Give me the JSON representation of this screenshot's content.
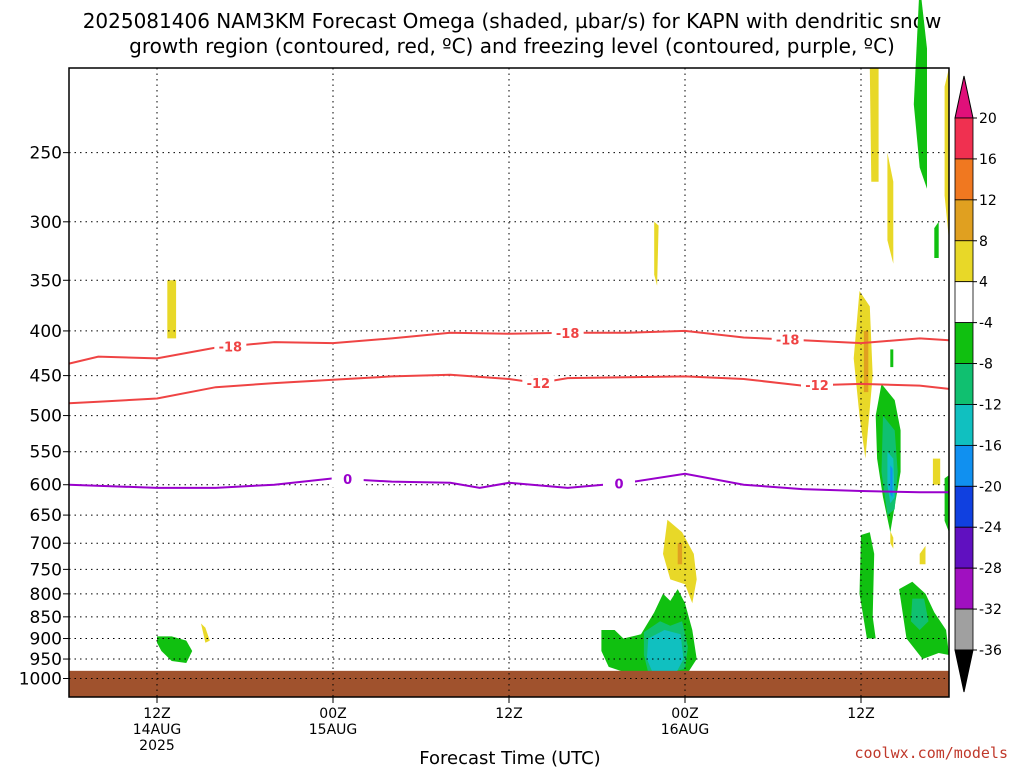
{
  "chart_data": {
    "type": "heatmap",
    "title_line1": "2025081406 NAM3KM Forecast Omega (shaded, µbar/s) for KAPN with dendritic snow",
    "title_line2": "growth region (contoured, red, ºC) and freezing level (contoured, purple, ºC)",
    "xlabel": "Forecast Time (UTC)",
    "credit": "coolwx.com/models",
    "x_ticks": [
      {
        "hour": 12,
        "lines": [
          "12Z",
          "14AUG",
          "2025"
        ]
      },
      {
        "hour": 24,
        "lines": [
          "00Z",
          "15AUG"
        ]
      },
      {
        "hour": 36,
        "lines": [
          "12Z"
        ]
      },
      {
        "hour": 48,
        "lines": [
          "00Z",
          "16AUG"
        ]
      },
      {
        "hour": 60,
        "lines": [
          "12Z"
        ]
      }
    ],
    "x_range_hours": [
      6,
      66
    ],
    "y_ticks": [
      250,
      300,
      350,
      400,
      450,
      500,
      550,
      600,
      650,
      700,
      750,
      800,
      850,
      900,
      950,
      1000
    ],
    "y_axis": "pressure (hPa), log scale, top 200 to bottom 1050",
    "grid": "dotted horizontal at pressure levels, dotted vertical at 12Z/00Z",
    "colorbar": {
      "labels": [
        "20",
        "16",
        "12",
        "8",
        "4",
        "-4",
        "-8",
        "-12",
        "-16",
        "-20",
        "-24",
        "-28",
        "-32",
        "-36"
      ],
      "colors": [
        "#f03050",
        "#f07820",
        "#e0a020",
        "#e8d828",
        "#ffffff",
        "#10c010",
        "#10c070",
        "#10c0c0",
        "#1090f0",
        "#1040e0",
        "#6010c0",
        "#a010c0",
        "#a0a0a0"
      ],
      "top_arrow": "#e0107a",
      "bottom_arrow": "#000000"
    },
    "contour_labels": {
      "dgz_upper": "-18",
      "dgz_lower": "-12",
      "freezing": "0"
    },
    "series": [
      {
        "values_hpa": [
          [
            6,
            436
          ],
          [
            8,
            428
          ],
          [
            12,
            430
          ],
          [
            16,
            418
          ],
          [
            20,
            412
          ],
          [
            24,
            413
          ],
          [
            28,
            408
          ],
          [
            32,
            402
          ],
          [
            36,
            403
          ],
          [
            40,
            402
          ],
          [
            44,
            402
          ],
          [
            48,
            400
          ],
          [
            52,
            407
          ],
          [
            56,
            410
          ],
          [
            60,
            413
          ],
          [
            64,
            408
          ],
          [
            66,
            410
          ]
        ],
        "color": "#ef4444"
      },
      {
        "values_hpa": [
          [
            6,
            484
          ],
          [
            8,
            482
          ],
          [
            12,
            478
          ],
          [
            16,
            464
          ],
          [
            20,
            459
          ],
          [
            24,
            455
          ],
          [
            28,
            451
          ],
          [
            32,
            449
          ],
          [
            36,
            454
          ],
          [
            38,
            459
          ],
          [
            40,
            453
          ],
          [
            44,
            452
          ],
          [
            48,
            451
          ],
          [
            52,
            454
          ],
          [
            56,
            462
          ],
          [
            60,
            460
          ],
          [
            64,
            462
          ],
          [
            66,
            466
          ]
        ],
        "color": "#ef4444"
      },
      {
        "values_hpa": [
          [
            6,
            600
          ],
          [
            12,
            605
          ],
          [
            16,
            605
          ],
          [
            20,
            600
          ],
          [
            24,
            590
          ],
          [
            28,
            595
          ],
          [
            32,
            597
          ],
          [
            34,
            605
          ],
          [
            36,
            597
          ],
          [
            40,
            605
          ],
          [
            44,
            597
          ],
          [
            48,
            583
          ],
          [
            52,
            600
          ],
          [
            56,
            607
          ],
          [
            60,
            610
          ],
          [
            64,
            612
          ],
          [
            66,
            612
          ]
        ],
        "color": "#9900cc"
      }
    ],
    "omega_regions": [
      {
        "color": "#e8d828",
        "points": [
          [
            12.7,
            350
          ],
          [
            13.3,
            350
          ],
          [
            13.3,
            408
          ],
          [
            12.7,
            408
          ]
        ]
      },
      {
        "color": "#e8d828",
        "points": [
          [
            45.9,
            300
          ],
          [
            46.2,
            303
          ],
          [
            46.1,
            355
          ],
          [
            45.9,
            345
          ]
        ]
      },
      {
        "color": "#e8d828",
        "points": [
          [
            46.8,
            658
          ],
          [
            47.8,
            680
          ],
          [
            48.6,
            720
          ],
          [
            48.8,
            770
          ],
          [
            48.5,
            820
          ],
          [
            48.0,
            780
          ],
          [
            47.0,
            770
          ],
          [
            46.5,
            720
          ]
        ]
      },
      {
        "color": "#e8d828",
        "points": [
          [
            60.6,
            200
          ],
          [
            61.2,
            200
          ],
          [
            61.2,
            270
          ],
          [
            60.7,
            270
          ]
        ]
      },
      {
        "color": "#e8d828",
        "points": [
          [
            61.8,
            250
          ],
          [
            62.2,
            270
          ],
          [
            62.2,
            335
          ],
          [
            61.8,
            315
          ]
        ]
      },
      {
        "color": "#e8d828",
        "points": [
          [
            59.9,
            360
          ],
          [
            60.6,
            375
          ],
          [
            60.8,
            450
          ],
          [
            60.3,
            560
          ],
          [
            59.9,
            500
          ],
          [
            59.5,
            430
          ]
        ]
      },
      {
        "color": "#e8d828",
        "points": [
          [
            65.7,
            210
          ],
          [
            66,
            200
          ],
          [
            66,
            315
          ],
          [
            65.7,
            280
          ]
        ]
      },
      {
        "color": "#e8d828",
        "points": [
          [
            64.9,
            560
          ],
          [
            65.4,
            560
          ],
          [
            65.4,
            600
          ],
          [
            64.9,
            600
          ]
        ]
      },
      {
        "color": "#e8d828",
        "points": [
          [
            62.0,
            678
          ],
          [
            62.2,
            690
          ],
          [
            62.2,
            710
          ],
          [
            62.0,
            700
          ]
        ]
      },
      {
        "color": "#e8d828",
        "points": [
          [
            64.0,
            720
          ],
          [
            64.4,
            705
          ],
          [
            64.4,
            740
          ],
          [
            64.0,
            740
          ]
        ]
      },
      {
        "color": "#e8d828",
        "points": [
          [
            60.8,
            1010
          ],
          [
            61.4,
            990
          ],
          [
            61.6,
            1020
          ],
          [
            61.0,
            1030
          ]
        ]
      },
      {
        "color": "#e8d828",
        "points": [
          [
            15.0,
            865
          ],
          [
            15.3,
            875
          ],
          [
            15.6,
            905
          ],
          [
            15.3,
            910
          ]
        ]
      },
      {
        "color": "#e0a020",
        "points": [
          [
            60.2,
            400
          ],
          [
            60.5,
            400
          ],
          [
            60.5,
            470
          ],
          [
            60.2,
            470
          ]
        ]
      },
      {
        "color": "#e0a020",
        "points": [
          [
            47.5,
            700
          ],
          [
            47.8,
            700
          ],
          [
            47.8,
            740
          ],
          [
            47.5,
            740
          ]
        ]
      },
      {
        "color": "#10c010",
        "points": [
          [
            12.0,
            895
          ],
          [
            13.0,
            895
          ],
          [
            14.0,
            905
          ],
          [
            14.4,
            930
          ],
          [
            14.0,
            960
          ],
          [
            13.0,
            955
          ],
          [
            12.3,
            930
          ],
          [
            12.0,
            910
          ]
        ]
      },
      {
        "color": "#10c010",
        "points": [
          [
            42.3,
            880
          ],
          [
            43.2,
            880
          ],
          [
            43.8,
            900
          ],
          [
            45.0,
            890
          ],
          [
            45.9,
            840
          ],
          [
            46.5,
            800
          ],
          [
            47.0,
            815
          ],
          [
            47.5,
            790
          ],
          [
            48.0,
            820
          ],
          [
            48.5,
            880
          ],
          [
            48.8,
            950
          ],
          [
            48.2,
            985
          ],
          [
            47.0,
            990
          ],
          [
            46.0,
            988
          ],
          [
            44.0,
            985
          ],
          [
            42.8,
            970
          ],
          [
            42.3,
            930
          ]
        ]
      },
      {
        "color": "#10c010",
        "points": [
          [
            64.0,
            160
          ],
          [
            64.5,
            190
          ],
          [
            64.5,
            275
          ],
          [
            64.0,
            260
          ],
          [
            63.6,
            220
          ]
        ]
      },
      {
        "color": "#10c010",
        "points": [
          [
            65.0,
            305
          ],
          [
            65.3,
            300
          ],
          [
            65.3,
            330
          ],
          [
            65.0,
            330
          ]
        ]
      },
      {
        "color": "#10c010",
        "points": [
          [
            61.4,
            460
          ],
          [
            62.3,
            480
          ],
          [
            62.7,
            520
          ],
          [
            62.7,
            580
          ],
          [
            62.4,
            620
          ],
          [
            62.0,
            680
          ],
          [
            61.5,
            620
          ],
          [
            61.1,
            560
          ],
          [
            61.0,
            500
          ]
        ]
      },
      {
        "color": "#10c010",
        "points": [
          [
            60.0,
            685
          ],
          [
            60.6,
            680
          ],
          [
            60.9,
            720
          ],
          [
            60.8,
            850
          ],
          [
            61.0,
            900
          ],
          [
            60.4,
            900
          ],
          [
            59.9,
            800
          ]
        ]
      },
      {
        "color": "#10c010",
        "points": [
          [
            62.6,
            790
          ],
          [
            63.5,
            775
          ],
          [
            64.4,
            800
          ],
          [
            65.0,
            840
          ],
          [
            65.8,
            880
          ],
          [
            66,
            940
          ],
          [
            65.3,
            935
          ],
          [
            64.2,
            950
          ],
          [
            63.1,
            900
          ]
        ]
      },
      {
        "color": "#10c010",
        "points": [
          [
            65.7,
            590
          ],
          [
            66,
            585
          ],
          [
            66,
            680
          ],
          [
            65.7,
            660
          ]
        ]
      },
      {
        "color": "#10c010",
        "points": [
          [
            62.0,
            420
          ],
          [
            62.2,
            420
          ],
          [
            62.2,
            440
          ],
          [
            62.0,
            440
          ]
        ]
      },
      {
        "color": "#10c070",
        "points": [
          [
            45.2,
            885
          ],
          [
            46.3,
            860
          ],
          [
            47.0,
            870
          ],
          [
            47.8,
            860
          ],
          [
            48.2,
            920
          ],
          [
            48.0,
            975
          ],
          [
            46.8,
            985
          ],
          [
            45.5,
            985
          ],
          [
            45.2,
            940
          ]
        ]
      },
      {
        "color": "#10c070",
        "points": [
          [
            61.5,
            500
          ],
          [
            62.3,
            520
          ],
          [
            62.5,
            580
          ],
          [
            62.3,
            640
          ],
          [
            61.8,
            650
          ],
          [
            61.4,
            580
          ]
        ]
      },
      {
        "color": "#10c070",
        "points": [
          [
            63.5,
            810
          ],
          [
            64.3,
            810
          ],
          [
            64.6,
            860
          ],
          [
            64.0,
            880
          ],
          [
            63.4,
            860
          ]
        ]
      },
      {
        "color": "#10c0c0",
        "points": [
          [
            45.5,
            900
          ],
          [
            46.6,
            880
          ],
          [
            47.7,
            890
          ],
          [
            47.9,
            950
          ],
          [
            47.4,
            985
          ],
          [
            45.8,
            985
          ],
          [
            45.4,
            950
          ]
        ]
      },
      {
        "color": "#10c0c0",
        "points": [
          [
            61.8,
            550
          ],
          [
            62.2,
            560
          ],
          [
            62.3,
            620
          ],
          [
            62.0,
            630
          ],
          [
            61.8,
            600
          ]
        ]
      },
      {
        "color": "#1090f0",
        "points": [
          [
            62.0,
            570
          ],
          [
            62.15,
            575
          ],
          [
            62.15,
            620
          ],
          [
            62.0,
            615
          ]
        ]
      }
    ]
  }
}
